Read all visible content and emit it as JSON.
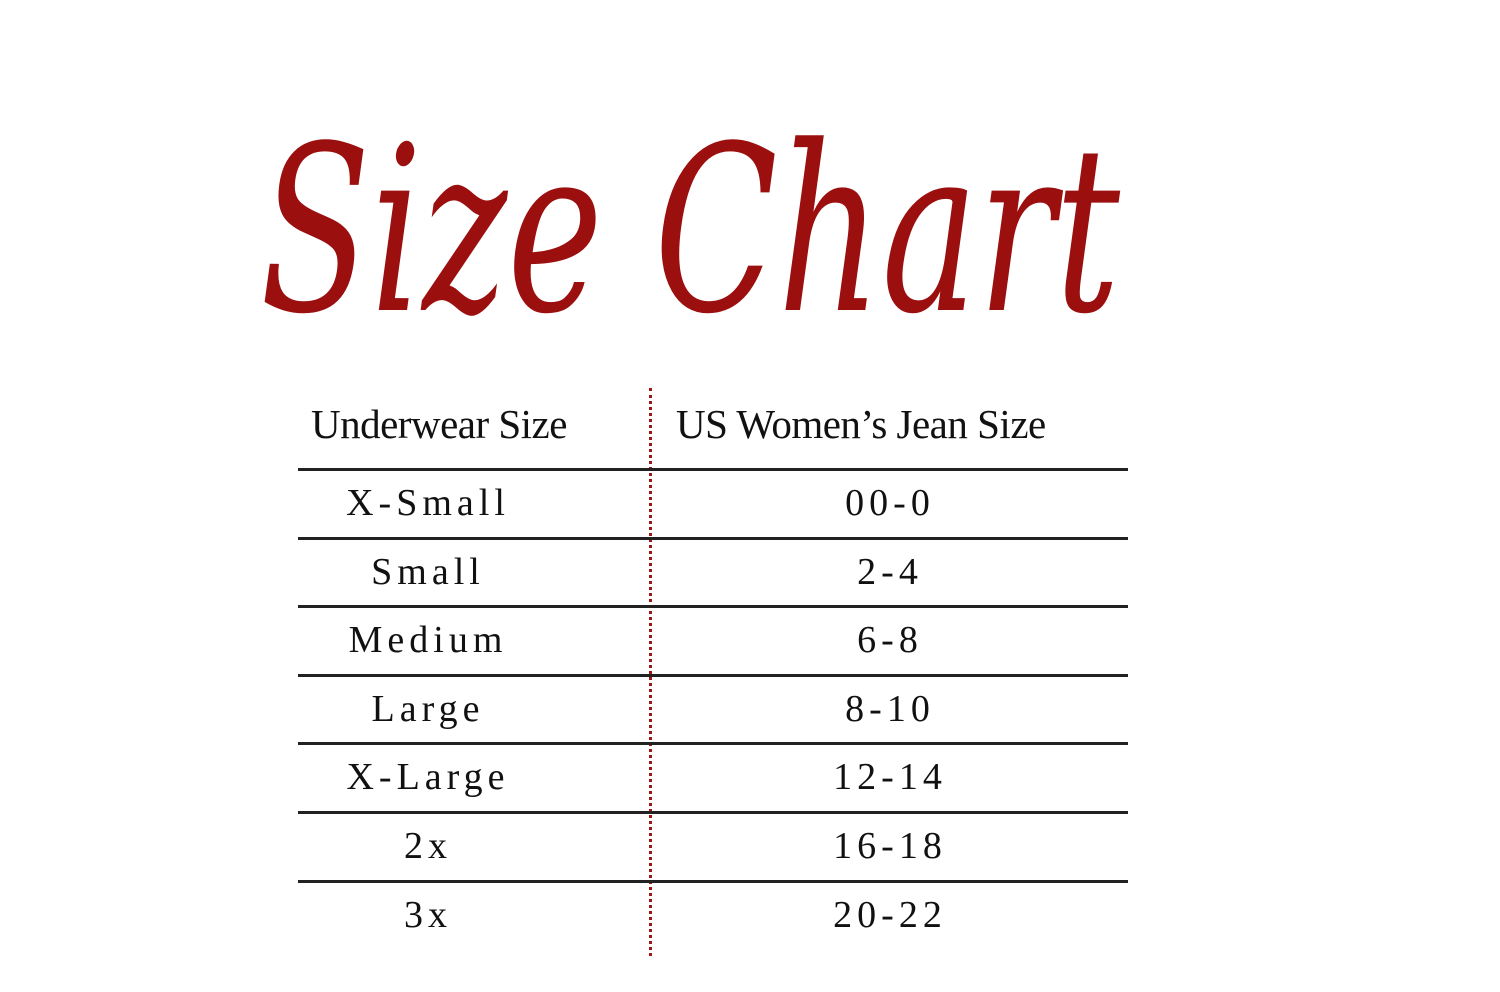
{
  "title": "Size Chart",
  "accent_color": "#9b0f0f",
  "table": {
    "headers": [
      "Underwear Size",
      "US Women’s Jean Size"
    ],
    "rows": [
      [
        "X-Small",
        "00-0"
      ],
      [
        "Small",
        "2-4"
      ],
      [
        "Medium",
        "6-8"
      ],
      [
        "Large",
        "8-10"
      ],
      [
        "X-Large",
        "12-14"
      ],
      [
        "2x",
        "16-18"
      ],
      [
        "3x",
        "20-22"
      ]
    ]
  }
}
